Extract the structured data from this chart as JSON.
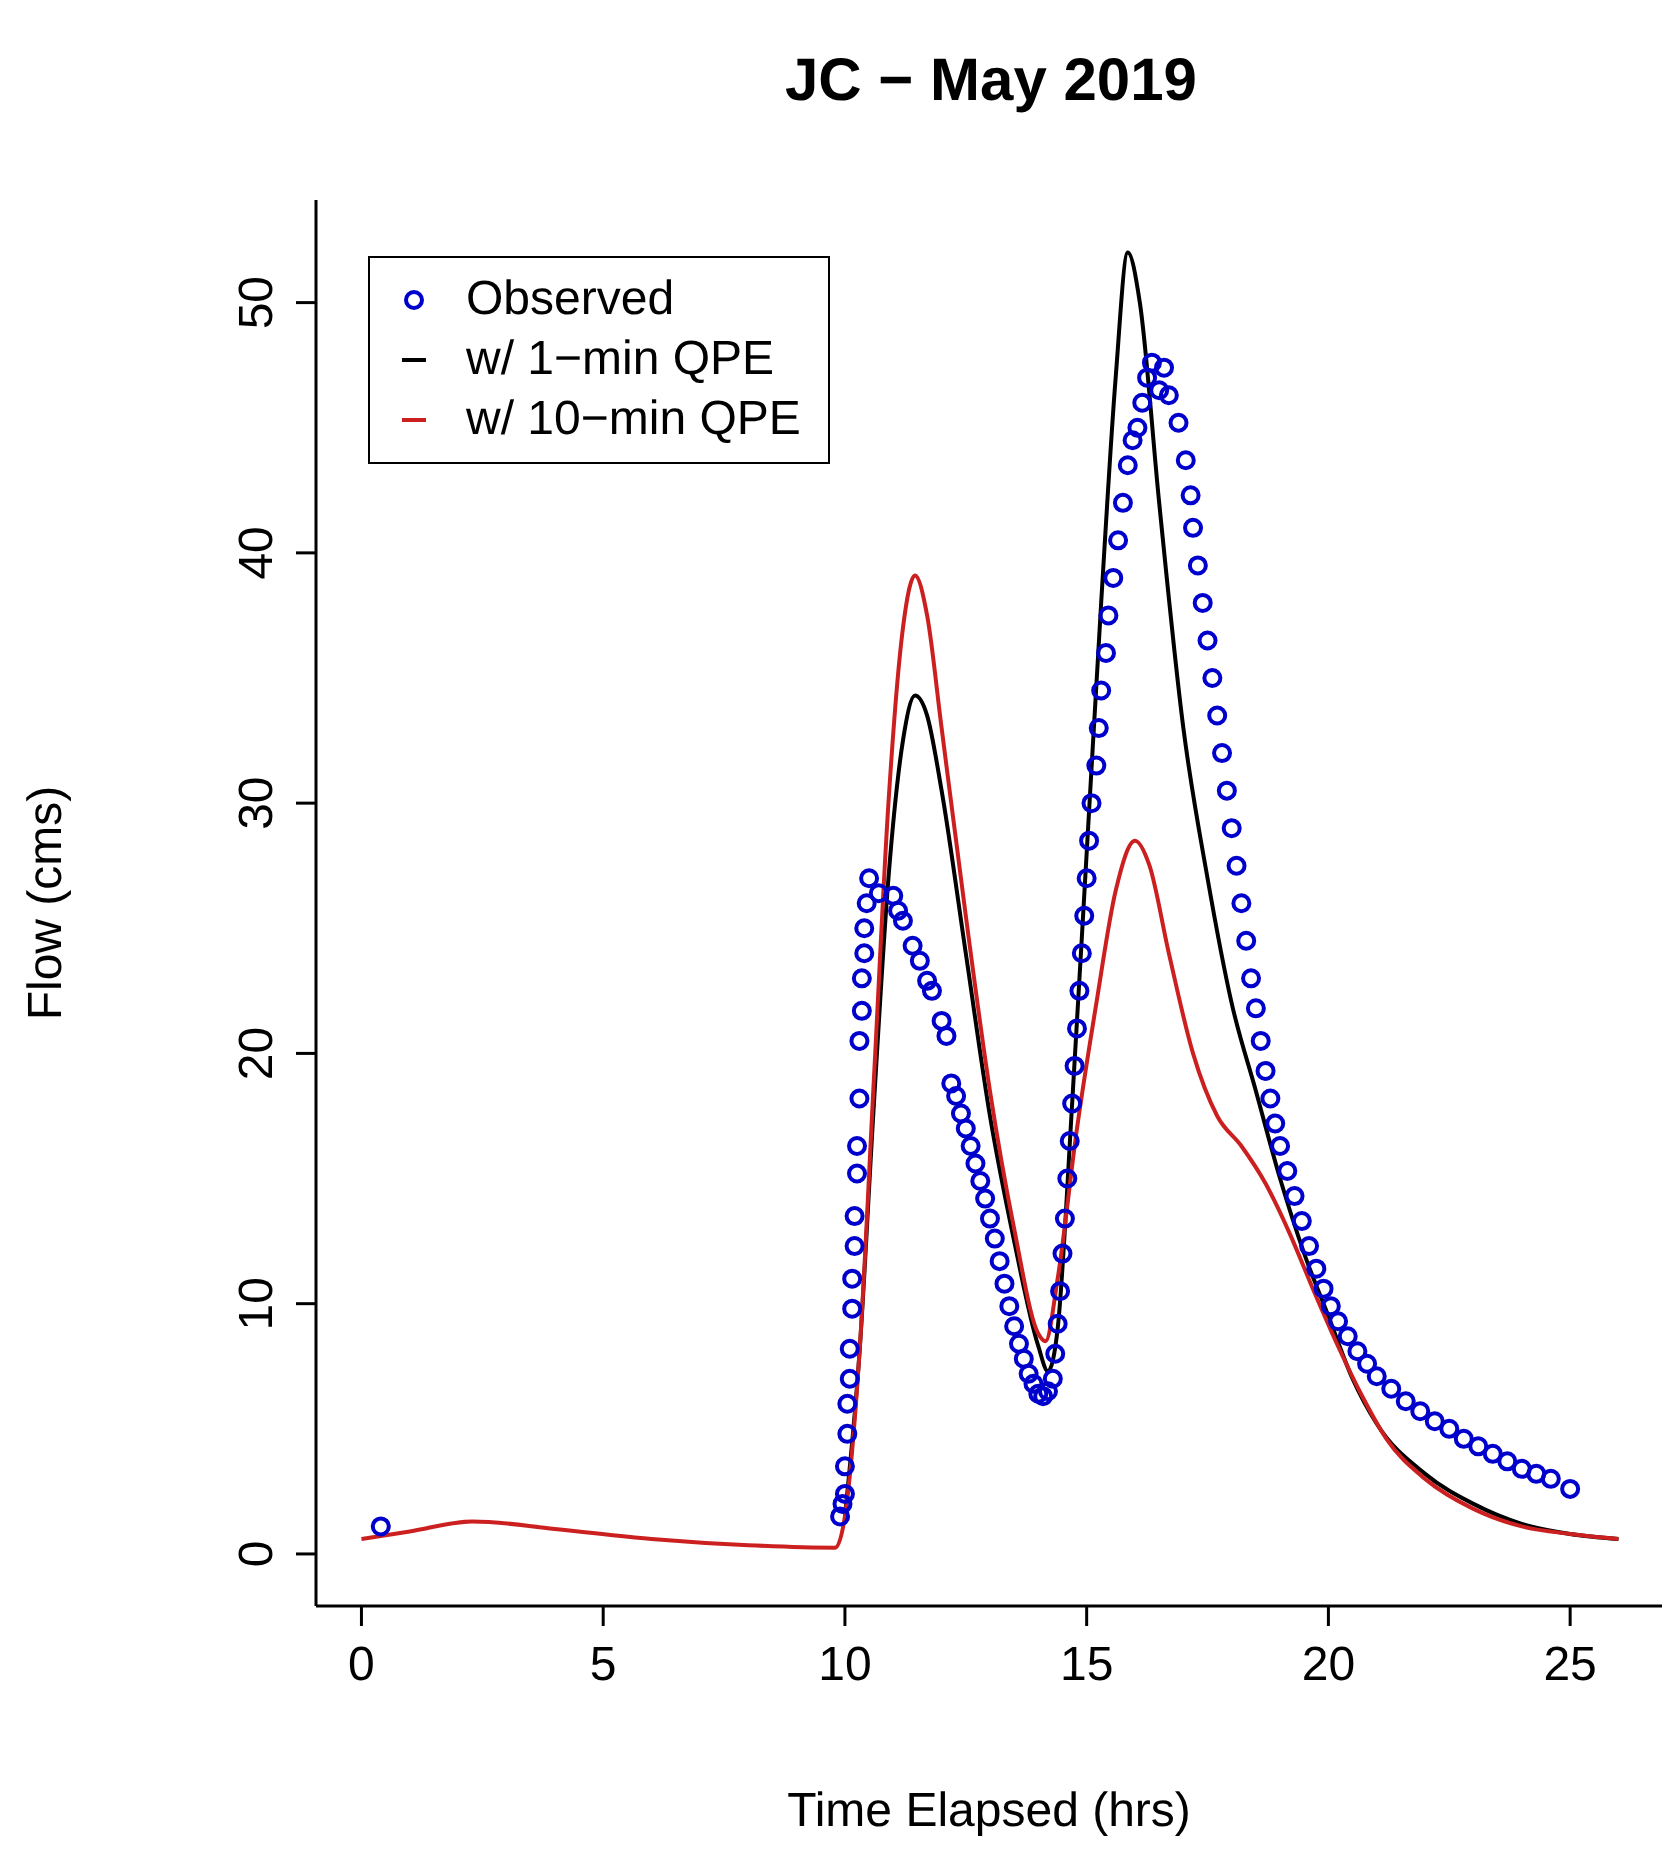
{
  "chart_data": {
    "type": "line",
    "title": "JC − May 2019",
    "xlabel": "Time Elapsed (hrs)",
    "ylabel": "Flow (cms)",
    "xlim": [
      -0.94,
      26.9
    ],
    "ylim": [
      -2.08,
      54.1
    ],
    "xticks": [
      0,
      5,
      10,
      15,
      20,
      25
    ],
    "yticks": [
      0,
      10,
      20,
      30,
      40,
      50
    ],
    "grid": false,
    "legend": "top left",
    "line_style": "solid",
    "series": [
      {
        "name": "Observed",
        "type": "scatter",
        "marker": "circle",
        "color": "#0000cc",
        "x": [
          0.4,
          9.9,
          9.95,
          10.0,
          10.0,
          10.05,
          10.05,
          10.1,
          10.1,
          10.15,
          10.15,
          10.2,
          10.2,
          10.25,
          10.25,
          10.3,
          10.3,
          10.35,
          10.35,
          10.4,
          10.4,
          10.45,
          10.5,
          10.7,
          11.0,
          11.1,
          11.2,
          11.4,
          11.55,
          11.7,
          11.8,
          12.0,
          12.1,
          12.2,
          12.3,
          12.4,
          12.5,
          12.6,
          12.7,
          12.8,
          12.9,
          13.0,
          13.1,
          13.2,
          13.3,
          13.4,
          13.5,
          13.6,
          13.7,
          13.8,
          13.9,
          14.0,
          14.1,
          14.2,
          14.3,
          14.35,
          14.4,
          14.45,
          14.5,
          14.55,
          14.6,
          14.65,
          14.7,
          14.75,
          14.8,
          14.85,
          14.9,
          14.95,
          15.0,
          15.05,
          15.1,
          15.2,
          15.25,
          15.3,
          15.4,
          15.45,
          15.55,
          15.65,
          15.75,
          15.85,
          15.95,
          16.05,
          16.15,
          16.25,
          16.35,
          16.5,
          16.6,
          16.7,
          16.9,
          17.05,
          17.15,
          17.2,
          17.3,
          17.4,
          17.5,
          17.6,
          17.7,
          17.8,
          17.9,
          18.0,
          18.1,
          18.2,
          18.3,
          18.4,
          18.5,
          18.6,
          18.7,
          18.8,
          18.9,
          19.0,
          19.15,
          19.3,
          19.45,
          19.6,
          19.75,
          19.9,
          20.05,
          20.2,
          20.4,
          20.6,
          20.8,
          21.0,
          21.3,
          21.6,
          21.9,
          22.2,
          22.5,
          22.8,
          23.1,
          23.4,
          23.7,
          24.0,
          24.3,
          24.6,
          25.0
        ],
        "values": [
          1.1,
          1.5,
          2.0,
          2.4,
          3.5,
          4.8,
          6.0,
          7.0,
          8.2,
          9.8,
          11,
          12.3,
          13.5,
          15.2,
          16.3,
          18.2,
          20.5,
          21.7,
          23,
          24,
          25,
          26,
          27,
          26.4,
          26.3,
          25.7,
          25.3,
          24.3,
          23.7,
          22.9,
          22.5,
          21.3,
          20.7,
          18.8,
          18.3,
          17.6,
          17.0,
          16.3,
          15.6,
          14.9,
          14.2,
          13.4,
          12.6,
          11.7,
          10.8,
          9.9,
          9.1,
          8.4,
          7.8,
          7.2,
          6.8,
          6.4,
          6.3,
          6.5,
          7.0,
          8.0,
          9.2,
          10.5,
          12,
          13.4,
          15,
          16.5,
          18,
          19.5,
          21,
          22.5,
          24,
          25.5,
          27,
          28.5,
          30,
          31.5,
          33,
          34.5,
          36,
          37.5,
          39,
          40.5,
          42,
          43.5,
          44.5,
          45,
          46,
          47,
          47.6,
          46.5,
          47.4,
          46.3,
          45.2,
          43.7,
          42.3,
          41,
          39.5,
          38,
          36.5,
          35,
          33.5,
          32,
          30.5,
          29,
          27.5,
          26,
          24.5,
          23,
          21.8,
          20.5,
          19.3,
          18.2,
          17.2,
          16.3,
          15.3,
          14.3,
          13.3,
          12.3,
          11.4,
          10.6,
          9.9,
          9.3,
          8.7,
          8.1,
          7.6,
          7.1,
          6.6,
          6.1,
          5.7,
          5.3,
          5.0,
          4.6,
          4.3,
          4.0,
          3.7,
          3.4,
          3.2,
          3.0,
          2.6
        ]
      },
      {
        "name": "w/ 1−min QPE",
        "color": "#000000",
        "x": [
          10.0,
          10.3,
          10.6,
          10.9,
          11.2,
          11.45,
          11.7,
          12.0,
          12.5,
          13,
          13.5,
          14.0,
          14.2,
          14.4,
          14.7,
          15.0,
          15.3,
          15.6,
          15.85,
          16.1,
          16.5,
          17,
          17.5,
          18,
          18.5,
          19,
          19.5,
          20,
          20.5,
          21,
          22,
          23,
          24,
          25,
          26
        ],
        "values": [
          1.5,
          8,
          18,
          27,
          32.5,
          34.3,
          33.5,
          30.5,
          24,
          17.5,
          12.5,
          8.3,
          7.3,
          9,
          18,
          28,
          38,
          47,
          52,
          50,
          42,
          33,
          27,
          22,
          18.5,
          15,
          12,
          9.5,
          7,
          5.2,
          3.2,
          2,
          1.2,
          0.8,
          0.6
        ]
      },
      {
        "name": "w/ 10−min QPE",
        "color": "#cc2020",
        "x": [
          0.0,
          1,
          2.3,
          4,
          6,
          8,
          9.8,
          10.0,
          10.3,
          10.6,
          10.9,
          11.2,
          11.45,
          11.7,
          12,
          12.5,
          13,
          13.5,
          14.0,
          14.15,
          14.4,
          14.8,
          15.2,
          15.6,
          16.0,
          16.3,
          16.7,
          17.2,
          17.7,
          18.2,
          18.7,
          19.2,
          19.7,
          20.2,
          20.7,
          21.2,
          22,
          23,
          24,
          25,
          26
        ],
        "values": [
          0.6,
          0.9,
          1.3,
          1.0,
          0.6,
          0.35,
          0.25,
          1.5,
          8,
          19,
          30,
          37,
          39.1,
          37.5,
          33,
          25.5,
          18.5,
          13,
          8.8,
          8.5,
          11,
          17,
          22,
          26.5,
          28.5,
          27.5,
          24,
          20,
          17.5,
          16.3,
          14.8,
          12.8,
          10.5,
          8.3,
          6.3,
          4.6,
          3,
          1.8,
          1.1,
          0.8,
          0.6
        ]
      }
    ]
  }
}
